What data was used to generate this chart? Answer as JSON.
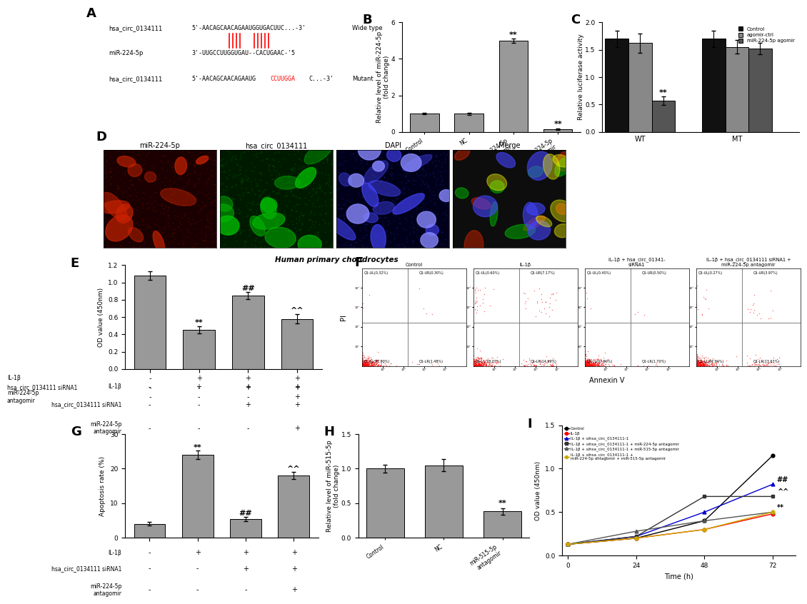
{
  "panel_B": {
    "categories": [
      "Control",
      "NC",
      "miR-224-5p agomir",
      "miR-224-5p antagomir"
    ],
    "values": [
      1.0,
      1.0,
      5.0,
      0.15
    ],
    "errors": [
      0.05,
      0.06,
      0.12,
      0.04
    ],
    "ylabel": "Relative level of miR-224-5p\n(fold change)",
    "ylim": [
      0,
      6
    ],
    "yticks": [
      0,
      2,
      4,
      6
    ]
  },
  "panel_C": {
    "groups": [
      "WT",
      "MT"
    ],
    "series": [
      "Control",
      "agomir-ctrl",
      "miR-224-5p agomir"
    ],
    "values_WT": [
      1.7,
      1.62,
      0.57
    ],
    "values_MT": [
      1.7,
      1.55,
      1.52
    ],
    "errors_WT": [
      0.15,
      0.18,
      0.08
    ],
    "errors_MT": [
      0.15,
      0.12,
      0.1
    ],
    "colors": [
      "#111111",
      "#888888",
      "#555555"
    ],
    "ylabel": "Relative luciferase activity",
    "ylim": [
      0,
      2.0
    ],
    "yticks": [
      0.0,
      0.5,
      1.0,
      1.5,
      2.0
    ]
  },
  "panel_D": {
    "subpanels": [
      "miR-224-5p",
      "hsa_circ_0134111",
      "DAPI",
      "Merge"
    ],
    "caption": "Human primary chondrocytes"
  },
  "panel_E": {
    "values": [
      1.08,
      0.45,
      0.85,
      0.58
    ],
    "errors": [
      0.05,
      0.04,
      0.04,
      0.05
    ],
    "ylabel": "OD value (450nm)",
    "ylim": [
      0,
      1.2
    ],
    "yticks": [
      0.0,
      0.2,
      0.4,
      0.6,
      0.8,
      1.0,
      1.2
    ]
  },
  "panel_F": {
    "titles": [
      "Control",
      "IL-1β",
      "IL-1β + hsa_circ_01341-\nsiRNA1",
      "IL-1β + hsa_circ_0134111 siRNA1 +\nmiR-224-5p antagomir"
    ],
    "q_ul": [
      "Q1-UL(0.32%)",
      "Q1-UL(0.60%)",
      "Q1-UL(0.40%)",
      "Q1-UL(0.27%)"
    ],
    "q_ur": [
      "Q1-UR(0.30%)",
      "Q1-UR(7.17%)",
      "Q1-UR(0.50%)",
      "Q1-UR(3.97%)"
    ],
    "q_ll": [
      "Q1-LL(97.90%)",
      "Q1-LL(78.07%)",
      "Q1-LL(77.90%)",
      "Q1-LL(81.94%)"
    ],
    "q_lr": [
      "Q1-LR(1.48%)",
      "Q1-LR(14.99%)",
      "Q1-LR(1.70%)",
      "Q1-LR(13.62%)"
    ]
  },
  "panel_G": {
    "values": [
      4.0,
      24.0,
      5.5,
      18.0
    ],
    "errors": [
      0.5,
      1.2,
      0.6,
      1.0
    ],
    "ylabel": "Apoptosis rate (%)",
    "ylim": [
      0,
      30
    ],
    "yticks": [
      0,
      10,
      20,
      30
    ]
  },
  "panel_H": {
    "categories": [
      "Control",
      "NC",
      "miR-515-5p antagomir"
    ],
    "values": [
      1.0,
      1.05,
      0.38
    ],
    "errors": [
      0.06,
      0.09,
      0.05
    ],
    "ylabel": "Relative level of miR-515-5p\n(fold change)",
    "ylim": [
      0,
      1.5
    ],
    "yticks": [
      0.0,
      0.5,
      1.0,
      1.5
    ]
  },
  "panel_I": {
    "xlabel": "Time (h)",
    "ylabel": "OD value (450nm)",
    "ylim": [
      0,
      1.5
    ],
    "yticks": [
      0.0,
      0.5,
      1.0,
      1.5
    ],
    "xlim": [
      -2,
      80
    ],
    "xticks": [
      0,
      24,
      48,
      72
    ],
    "time_points": [
      0,
      24,
      48,
      72
    ],
    "series": [
      {
        "label": "Control",
        "color": "#000000",
        "marker": "o",
        "linestyle": "-",
        "values": [
          0.13,
          0.2,
          0.4,
          1.15
        ]
      },
      {
        "label": "IL-1β",
        "color": "#ff0000",
        "marker": "o",
        "linestyle": "-",
        "values": [
          0.13,
          0.2,
          0.3,
          0.48
        ]
      },
      {
        "label": "IL-1β + sihsa_circ_0134111-1",
        "color": "#0000ff",
        "marker": "^",
        "linestyle": "-",
        "values": [
          0.13,
          0.22,
          0.5,
          0.82
        ]
      },
      {
        "label": "IL-1β + sihsa_circ_0134111-1 + miR-224-5p antagomir",
        "color": "#000000",
        "marker": "s",
        "linestyle": "-",
        "values": [
          0.13,
          0.22,
          0.68,
          0.68
        ]
      },
      {
        "label": "IL-1β + sihsa_circ_0134111-1 + miR-515-5p antagomir",
        "color": "#000000",
        "marker": "^",
        "linestyle": "-",
        "values": [
          0.13,
          0.28,
          0.4,
          0.5
        ]
      },
      {
        "label": "IL-1β + sihsa_circ_0134111-1 +\nmiR-224-5p antagomir + miR-515-5p antagomir",
        "color": "#ccaa00",
        "marker": "o",
        "linestyle": "-",
        "values": [
          0.13,
          0.2,
          0.3,
          0.5
        ]
      }
    ],
    "sig_vals": {
      "##": 0.82,
      "^^": 0.68,
      "**": 0.5
    }
  },
  "bar_color": "#999999",
  "bottom_row_labels": {
    "IL-1β": [
      "-",
      "+",
      "+",
      "+"
    ],
    "hsa_circ_0134111 siRNA1": [
      "-",
      "-",
      "+",
      "+"
    ],
    "miR-224-5p\nantagomir": [
      "-",
      "-",
      "-",
      "+"
    ]
  }
}
